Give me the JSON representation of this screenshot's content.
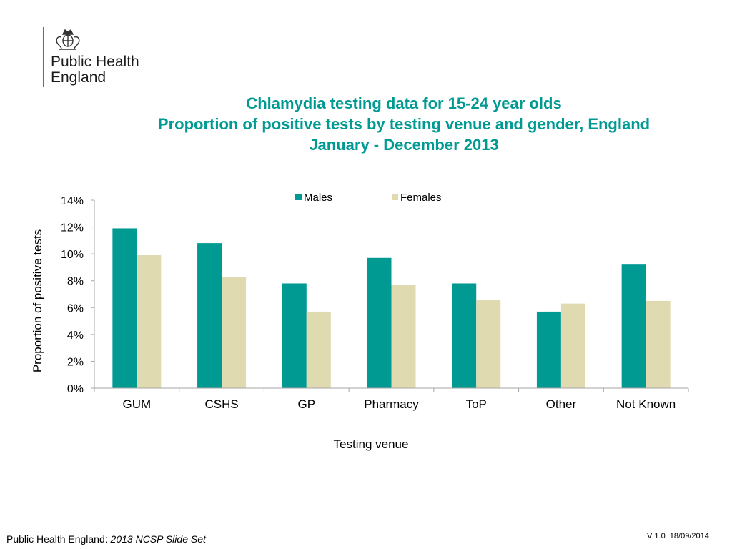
{
  "logo": {
    "org_line1": "Public Health",
    "org_line2": "England",
    "crest_icon": "royal-crest-icon"
  },
  "title_lines": [
    "Chlamydia testing data for 15-24 year olds",
    "Proportion of positive tests by testing venue and gender, England",
    "January - December 2013"
  ],
  "colors": {
    "accent": "#009a93",
    "males": "#009a93",
    "females": "#e0dab0",
    "axis": "#a6a6a6"
  },
  "chart_data": {
    "type": "bar",
    "title": "Chlamydia testing data for 15-24 year olds / Proportion of positive tests by testing venue and gender, England / January - December 2013",
    "xlabel": "Testing venue",
    "ylabel": "Proportion of positive tests",
    "categories": [
      "GUM",
      "CSHS",
      "GP",
      "Pharmacy",
      "ToP",
      "Other",
      "Not Known"
    ],
    "series": [
      {
        "name": "Males",
        "values": [
          11.9,
          10.8,
          7.8,
          9.7,
          7.8,
          5.7,
          9.2
        ]
      },
      {
        "name": "Females",
        "values": [
          9.9,
          8.3,
          5.7,
          7.7,
          6.6,
          6.3,
          6.5
        ]
      }
    ],
    "ylim": [
      0,
      14
    ],
    "ytick_labels": [
      "0%",
      "2%",
      "4%",
      "6%",
      "8%",
      "10%",
      "12%",
      "14%"
    ],
    "grid": false,
    "legend_position": "top-center"
  },
  "footer": {
    "source_label": "Public Health England: ",
    "source_title": "2013 NCSP Slide Set",
    "version": "V 1.0  18/09/2014"
  }
}
